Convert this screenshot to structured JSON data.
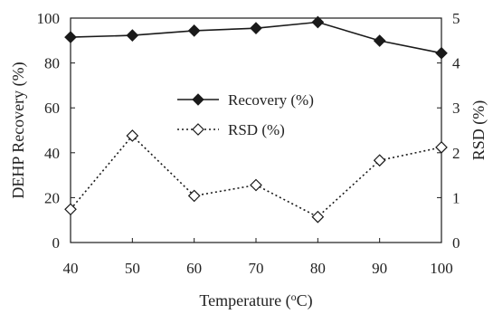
{
  "chart_data": {
    "type": "line",
    "title": "",
    "x": [
      40,
      50,
      60,
      70,
      80,
      90,
      100
    ],
    "x_ticks": [
      "40",
      "50",
      "60",
      "70",
      "80",
      "90",
      "100"
    ],
    "xlim": [
      40,
      100
    ],
    "xlabel": "Temperature (",
    "xlabel_sup": "o",
    "xlabel_tail": "C)",
    "ylabel_left": "DEHP Recovery (%)",
    "ylabel_right": "RSD (%)",
    "ylim_left": [
      0,
      100
    ],
    "ylim_right": [
      0,
      5
    ],
    "yticks_left": [
      "0",
      "20",
      "40",
      "60",
      "80",
      "100"
    ],
    "yticks_right": [
      "0",
      "1",
      "2",
      "3",
      "4",
      "5"
    ],
    "grid": false,
    "legend_placement": "center",
    "series": [
      {
        "name": "Recovery (%)",
        "axis": "left",
        "style": "solid",
        "marker": "filled-diamond",
        "color": "#1a1a1a",
        "values": [
          91.5,
          92.3,
          94.4,
          95.5,
          98.2,
          89.9,
          84.4
        ]
      },
      {
        "name": "RSD (%)",
        "axis": "right",
        "style": "dotted",
        "marker": "open-diamond",
        "color": "#1a1a1a",
        "values": [
          0.74,
          2.38,
          1.04,
          1.28,
          0.57,
          1.83,
          2.12
        ]
      }
    ]
  }
}
